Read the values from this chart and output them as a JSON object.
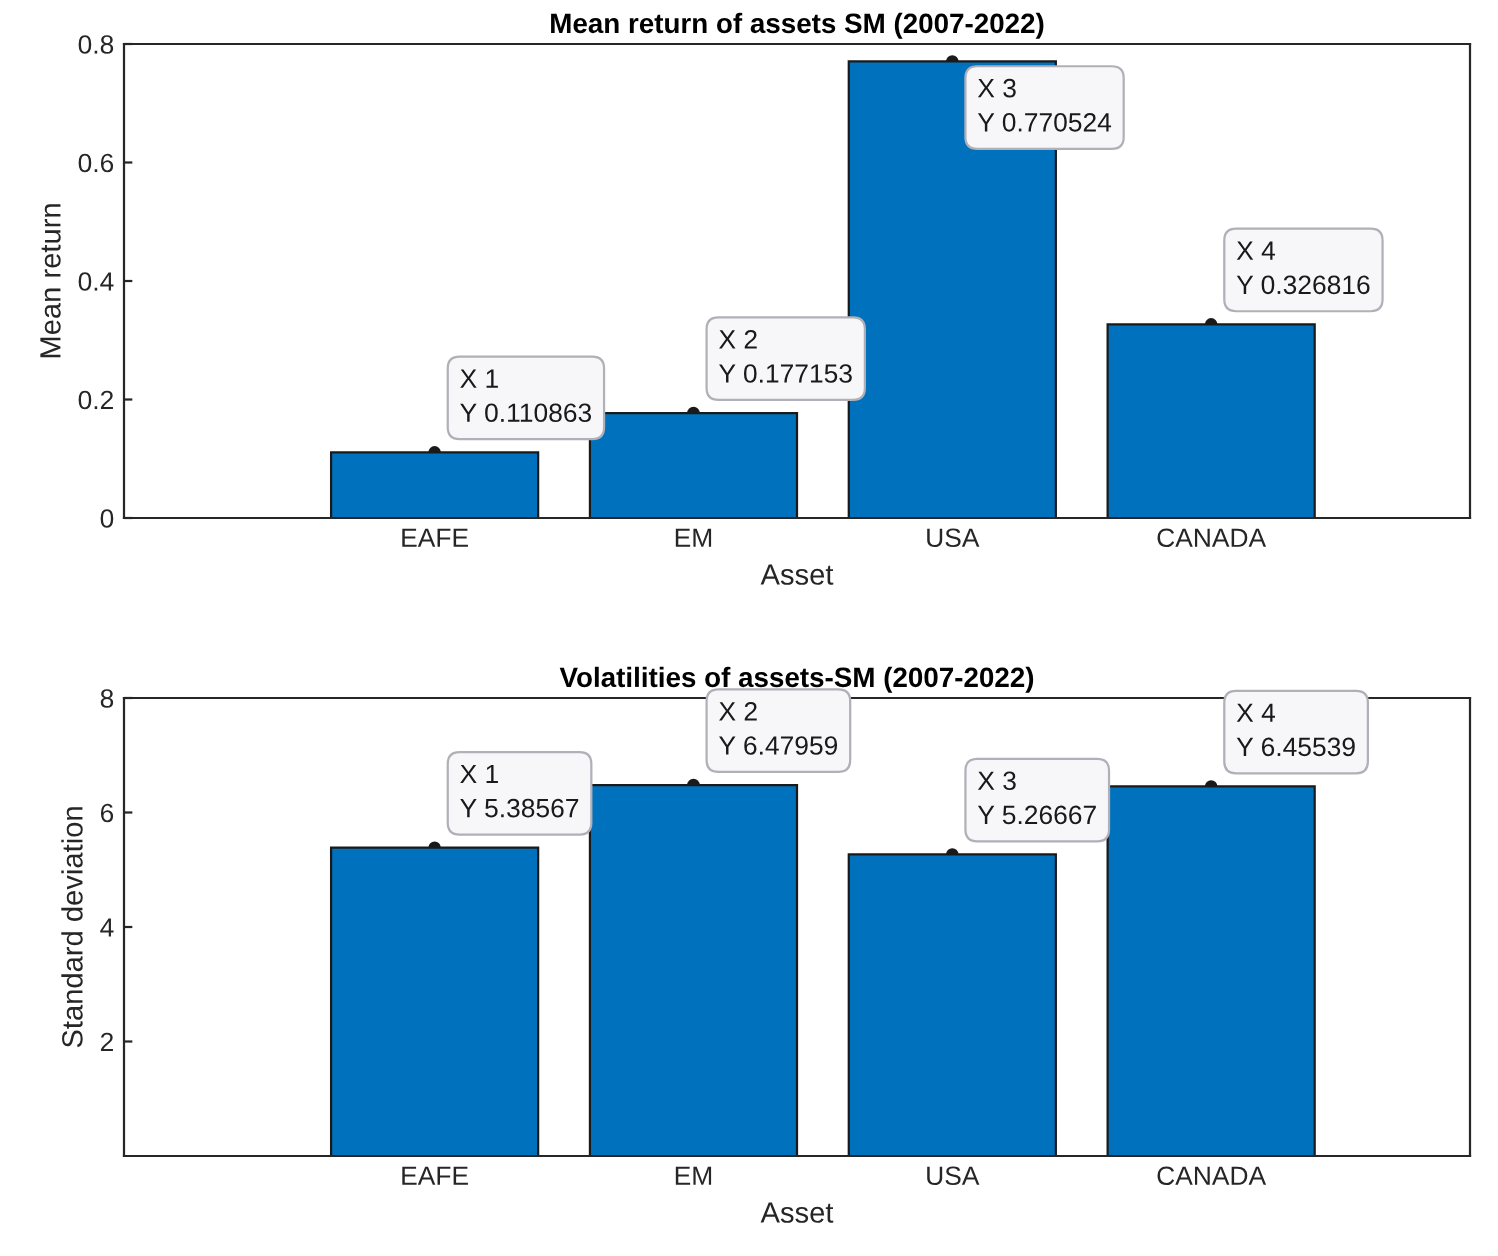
{
  "chart_data": [
    {
      "type": "bar",
      "title": "Mean return of assets SM (2007-2022)",
      "xlabel": "Asset",
      "ylabel": "Mean return",
      "categories": [
        "EAFE",
        "EM",
        "USA",
        "CANADA"
      ],
      "values": [
        0.110863,
        0.177153,
        0.770524,
        0.326816
      ],
      "color": "#0072bd",
      "ylim": [
        0,
        0.8
      ],
      "yticks": [
        0,
        0.2,
        0.4,
        0.6,
        0.8
      ],
      "grid": false,
      "annotations": [
        {
          "text": "X 1\nY 0.110863",
          "x": "EAFE",
          "y": 0.110863
        },
        {
          "text": "X 2\nY 0.177153",
          "x": "EM",
          "y": 0.177153
        },
        {
          "text": "X 3\nY 0.770524",
          "x": "USA",
          "y": 0.770524
        },
        {
          "text": "X 4\nY 0.326816",
          "x": "CANADA",
          "y": 0.326816
        }
      ]
    },
    {
      "type": "bar",
      "title": "Volatilities of assets-SM (2007-2022)",
      "xlabel": "Asset",
      "ylabel": "Standard deviation",
      "categories": [
        "EAFE",
        "EM",
        "USA",
        "CANADA"
      ],
      "values": [
        5.38567,
        6.47959,
        5.26667,
        6.45539
      ],
      "color": "#0072bd",
      "ylim": [
        0,
        8
      ],
      "yticks": [
        2,
        4,
        6,
        8
      ],
      "grid": false,
      "annotations": [
        {
          "text": "X 1\nY 5.38567",
          "x": "EAFE",
          "y": 5.38567
        },
        {
          "text": "X 2\nY 6.47959",
          "x": "EM",
          "y": 6.47959
        },
        {
          "text": "X 3\nY 5.26667",
          "x": "USA",
          "y": 5.26667
        },
        {
          "text": "X 4\nY 6.45539",
          "x": "CANADA",
          "y": 6.45539
        }
      ]
    }
  ]
}
